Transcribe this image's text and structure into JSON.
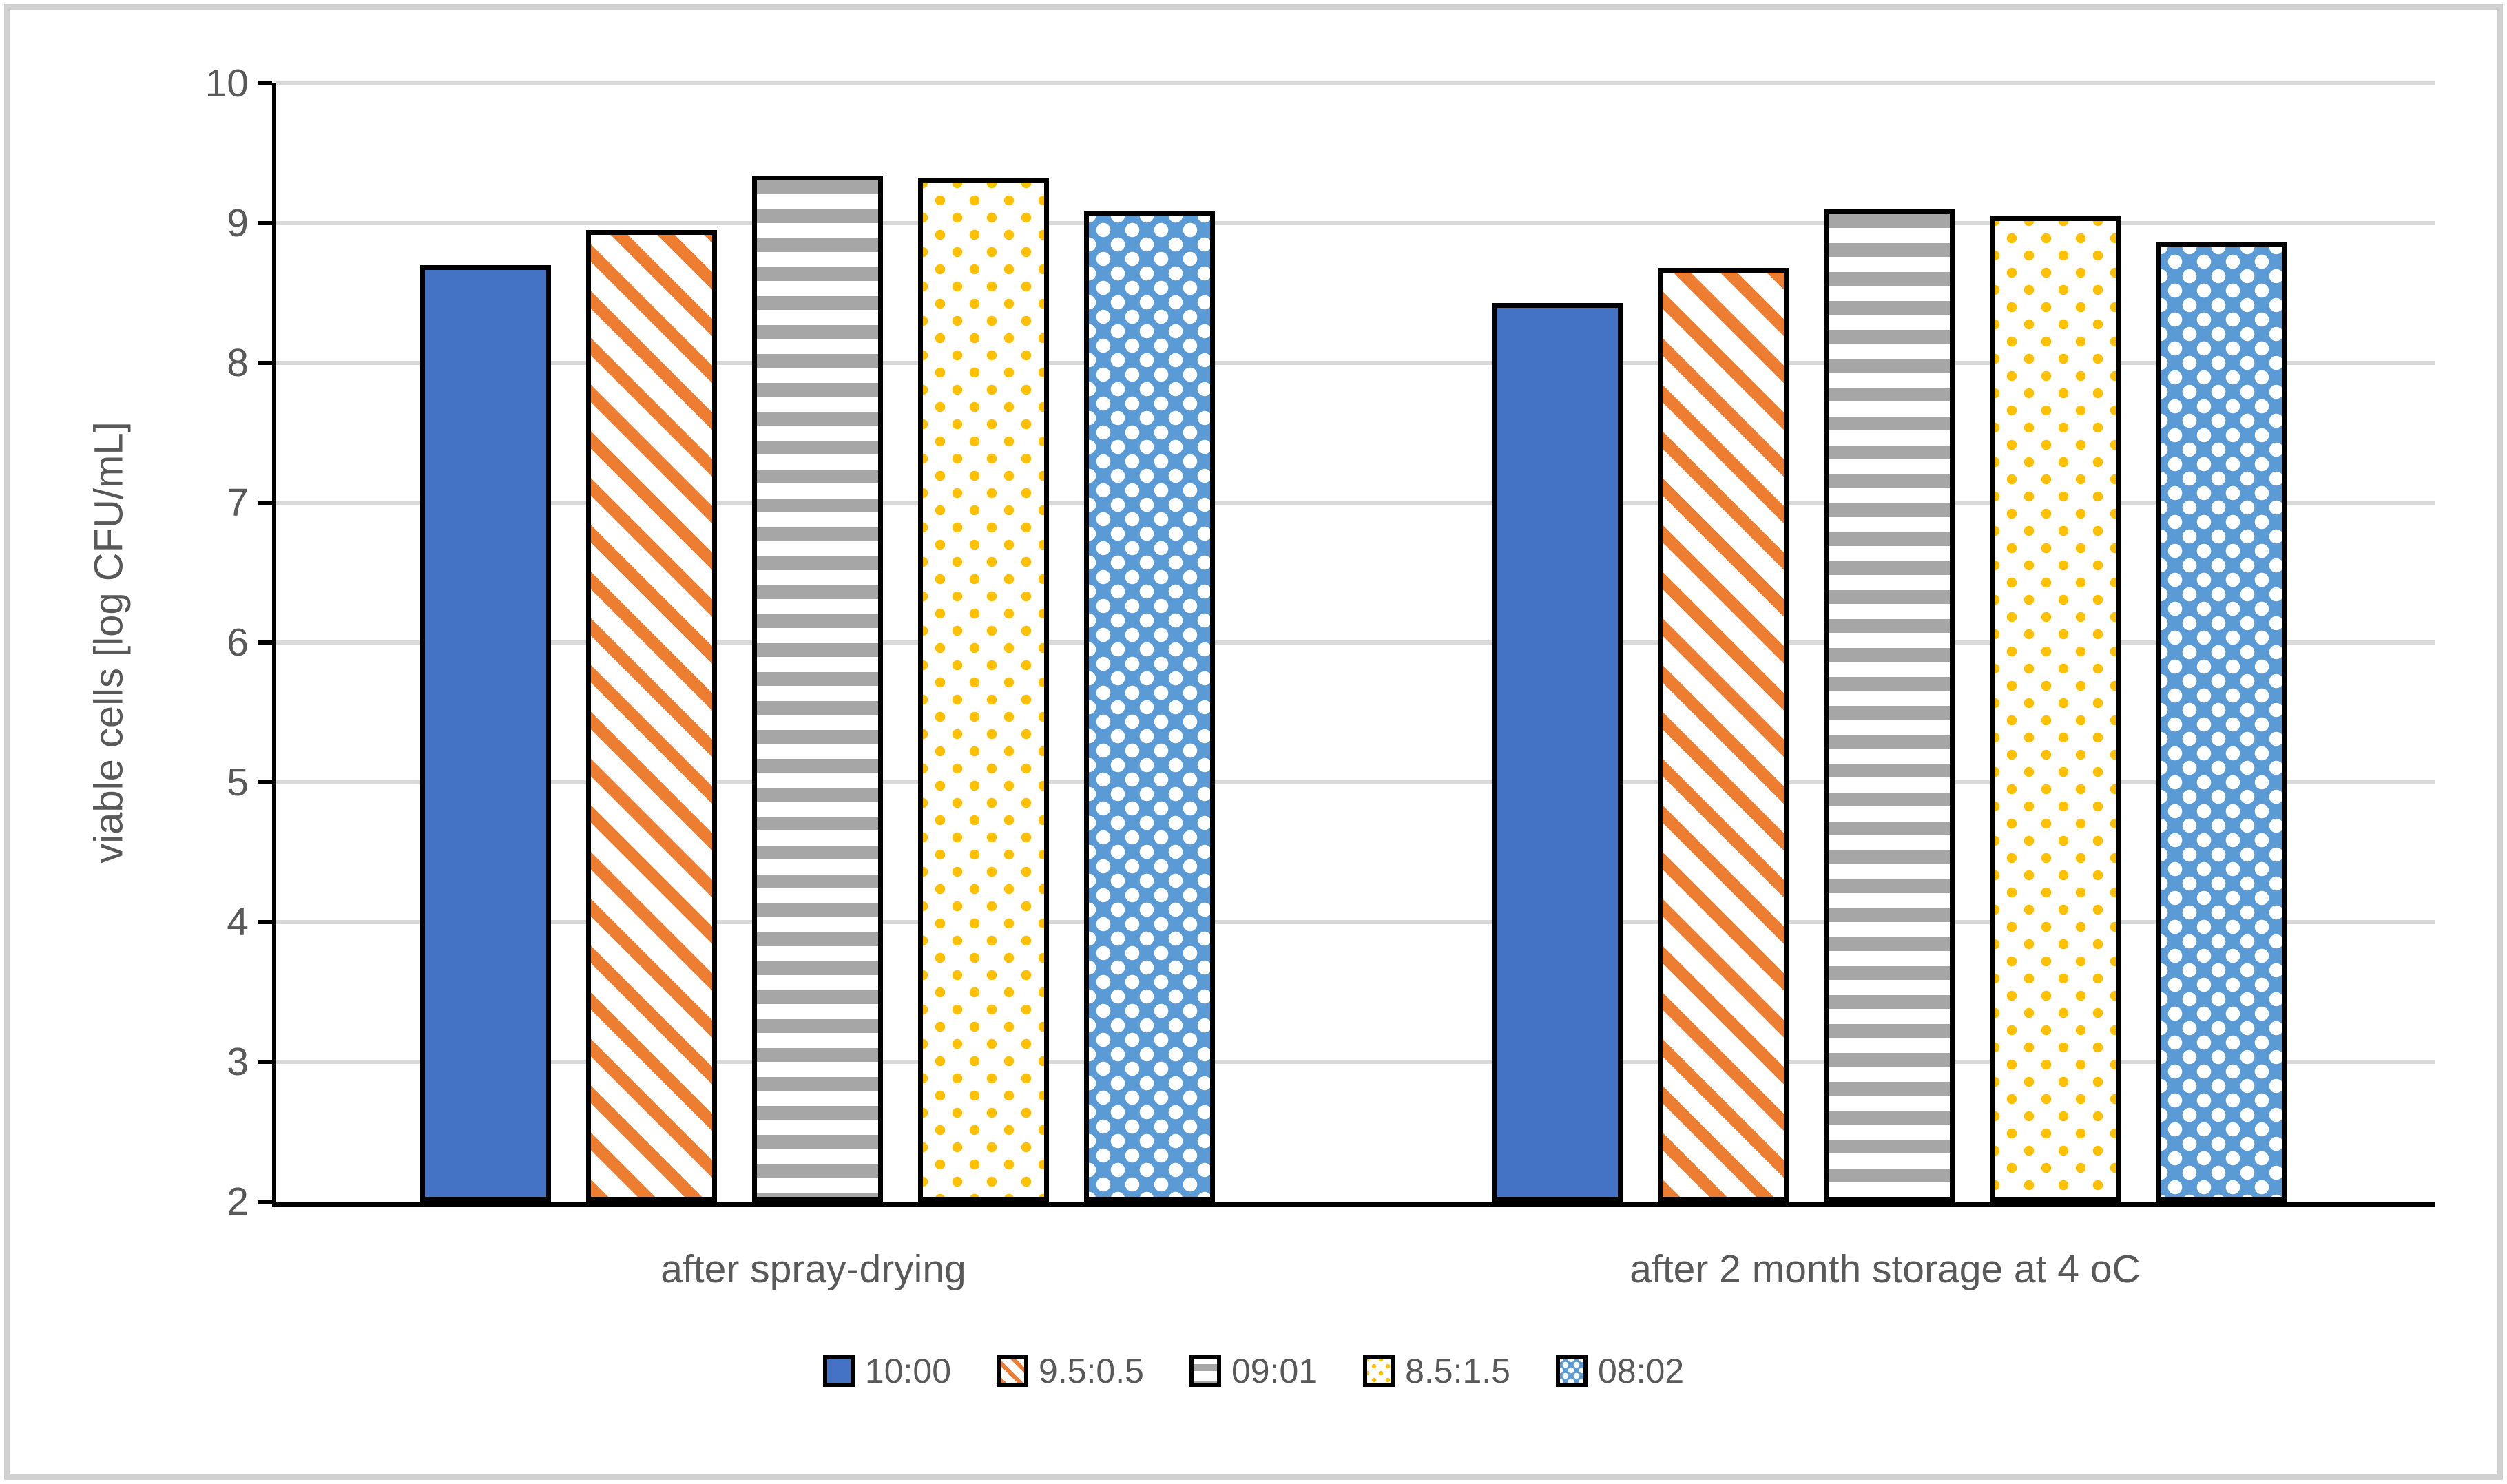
{
  "chart_data": {
    "type": "bar",
    "title": "",
    "ylabel": "viable cells  [log CFU/mL]",
    "xlabel": "",
    "categories": [
      "after spray-drying",
      "after 2 month storage at 4 oC"
    ],
    "series": [
      {
        "name": "10:00",
        "pattern": "solid-blue",
        "color": "#4472C4",
        "values": [
          8.7,
          8.43
        ]
      },
      {
        "name": "9.5:0.5",
        "pattern": "orange-diag",
        "color": "#ED7D31",
        "values": [
          8.95,
          8.68
        ]
      },
      {
        "name": "09:01",
        "pattern": "gray-horiz",
        "color": "#A6A6A6",
        "values": [
          9.34,
          9.1
        ]
      },
      {
        "name": "8.5:1.5",
        "pattern": "yellow-dot",
        "color": "#FFC000",
        "values": [
          9.32,
          9.05
        ]
      },
      {
        "name": "08:02",
        "pattern": "blue-check",
        "color": "#5B9BD5",
        "values": [
          9.09,
          8.86
        ]
      }
    ],
    "ylim": [
      2,
      10
    ],
    "yticks": [
      2,
      3,
      4,
      5,
      6,
      7,
      8,
      9,
      10
    ],
    "grid": true,
    "legend_position": "bottom",
    "colors": {
      "grid": "#d9d9d9",
      "axis": "#000000",
      "text": "#595959",
      "frame": "#d1d1d1",
      "background": "#ffffff"
    }
  }
}
